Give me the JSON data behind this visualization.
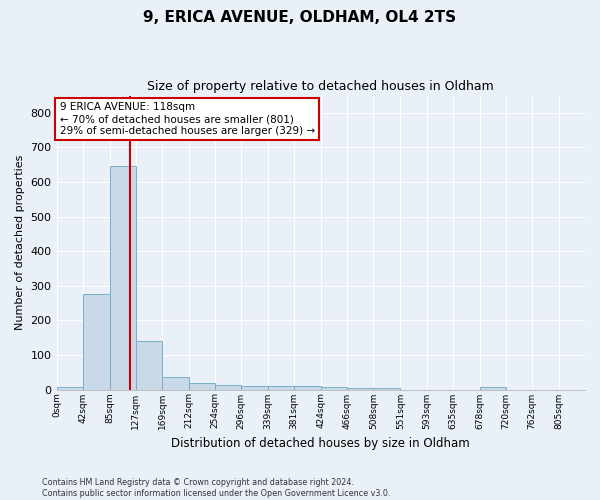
{
  "title1": "9, ERICA AVENUE, OLDHAM, OL4 2TS",
  "title2": "Size of property relative to detached houses in Oldham",
  "xlabel": "Distribution of detached houses by size in Oldham",
  "ylabel": "Number of detached properties",
  "footer": "Contains HM Land Registry data © Crown copyright and database right 2024.\nContains public sector information licensed under the Open Government Licence v3.0.",
  "annotation_line1": "9 ERICA AVENUE: 118sqm",
  "annotation_line2": "← 70% of detached houses are smaller (801)",
  "annotation_line3": "29% of semi-detached houses are larger (329) →",
  "bar_color": "#c9d9e8",
  "bar_edge_color": "#7aafc8",
  "vline_color": "#cc0000",
  "bin_edges": [
    0,
    42,
    85,
    127,
    169,
    212,
    254,
    296,
    339,
    381,
    424,
    466,
    508,
    551,
    593,
    635,
    678,
    720,
    762,
    805,
    847
  ],
  "bar_heights": [
    8,
    275,
    645,
    140,
    35,
    20,
    14,
    10,
    10,
    10,
    8,
    5,
    5,
    0,
    0,
    0,
    8,
    0,
    0,
    0
  ],
  "property_size": 118,
  "ylim": [
    0,
    850
  ],
  "yticks": [
    0,
    100,
    200,
    300,
    400,
    500,
    600,
    700,
    800
  ],
  "background_color": "#eaf0f8",
  "grid_color": "#ffffff",
  "annotation_box_color": "#ffffff",
  "annotation_border_color": "#cc0000"
}
